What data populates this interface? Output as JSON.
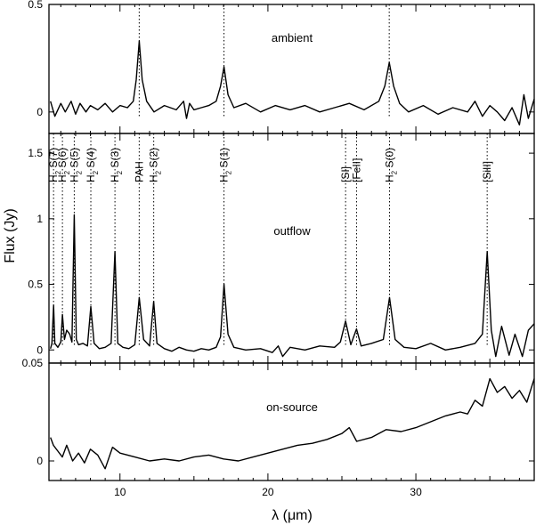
{
  "figure": {
    "ylabel": "Flux (Jy)",
    "xlabel": "λ (μm)"
  },
  "chart_data": [
    {
      "type": "line",
      "panel": "ambient",
      "title": "ambient",
      "xlim": [
        5.2,
        38
      ],
      "ylim": [
        -0.1,
        0.5
      ],
      "yticks": [
        0,
        0.5
      ],
      "ytick_labels": [
        "0",
        "0.5"
      ],
      "xticks": [
        10,
        20,
        30
      ],
      "xtick_labels": [
        "10",
        "20",
        "30"
      ],
      "line_markers": [
        11.3,
        17.03,
        28.2
      ],
      "x": [
        5.3,
        5.6,
        6.0,
        6.3,
        6.7,
        7.0,
        7.3,
        7.7,
        8.0,
        8.5,
        9.0,
        9.5,
        10.0,
        10.5,
        10.9,
        11.1,
        11.3,
        11.5,
        11.8,
        12.3,
        13.0,
        13.8,
        14.3,
        14.5,
        14.7,
        15.0,
        15.5,
        16.0,
        16.5,
        16.8,
        17.03,
        17.3,
        17.7,
        18.5,
        19.5,
        20.5,
        21.5,
        22.5,
        23.5,
        24.5,
        25.5,
        26.5,
        27.5,
        27.9,
        28.2,
        28.5,
        28.9,
        29.5,
        30.5,
        31.5,
        32.5,
        33.5,
        34.0,
        34.5,
        35.0,
        35.5,
        36.0,
        36.5,
        37.0,
        37.3,
        37.6,
        38.0
      ],
      "y": [
        0.05,
        -0.02,
        0.04,
        0.0,
        0.05,
        -0.01,
        0.04,
        0.0,
        0.03,
        0.01,
        0.04,
        0.0,
        0.03,
        0.02,
        0.05,
        0.15,
        0.33,
        0.15,
        0.05,
        0.0,
        0.03,
        0.01,
        0.05,
        -0.03,
        0.04,
        0.01,
        0.02,
        0.03,
        0.05,
        0.12,
        0.21,
        0.08,
        0.02,
        0.04,
        0.0,
        0.03,
        0.01,
        0.03,
        0.0,
        0.02,
        0.04,
        0.01,
        0.05,
        0.12,
        0.23,
        0.12,
        0.04,
        0.0,
        0.03,
        -0.01,
        0.02,
        0.0,
        0.05,
        -0.02,
        0.03,
        0.0,
        -0.04,
        0.02,
        -0.06,
        0.08,
        -0.03,
        0.06
      ]
    },
    {
      "type": "line",
      "panel": "outflow",
      "title": "outflow",
      "xlim": [
        5.2,
        38
      ],
      "ylim": [
        -0.1,
        1.65
      ],
      "yticks": [
        0,
        0.5,
        1,
        1.5
      ],
      "ytick_labels": [
        "0",
        "0.5",
        "1",
        "1.5"
      ],
      "xticks": [
        10,
        20,
        30
      ],
      "xtick_labels": [
        "10",
        "20",
        "30"
      ],
      "line_labels": [
        {
          "x": 5.51,
          "label": "S(7)",
          "h2": true
        },
        {
          "x": 6.11,
          "label": "S(6)",
          "h2": true
        },
        {
          "x": 6.91,
          "label": "S(5)",
          "h2": true
        },
        {
          "x": 8.03,
          "label": "S(4)",
          "h2": true
        },
        {
          "x": 9.66,
          "label": "S(3)",
          "h2": true
        },
        {
          "x": 11.3,
          "label": "PAH",
          "h2": false
        },
        {
          "x": 12.28,
          "label": "S(2)",
          "h2": true
        },
        {
          "x": 17.03,
          "label": "S(1)",
          "h2": true
        },
        {
          "x": 25.25,
          "label": "[SI]",
          "h2": false
        },
        {
          "x": 25.99,
          "label": "[FeII]",
          "h2": false
        },
        {
          "x": 28.22,
          "label": "S(0)",
          "h2": true
        },
        {
          "x": 34.82,
          "label": "[SiII]",
          "h2": false
        }
      ],
      "x": [
        5.3,
        5.4,
        5.51,
        5.6,
        5.8,
        6.0,
        6.11,
        6.25,
        6.4,
        6.6,
        6.75,
        6.91,
        7.05,
        7.2,
        7.5,
        7.8,
        8.03,
        8.25,
        8.6,
        9.0,
        9.4,
        9.66,
        9.85,
        10.2,
        10.6,
        11.0,
        11.3,
        11.6,
        12.0,
        12.28,
        12.5,
        13.0,
        13.5,
        14.0,
        14.5,
        15.0,
        15.5,
        16.0,
        16.5,
        16.8,
        17.03,
        17.3,
        17.7,
        18.5,
        19.5,
        20.3,
        20.7,
        21.0,
        21.5,
        22.5,
        23.5,
        24.5,
        24.9,
        25.25,
        25.6,
        25.99,
        26.3,
        27.0,
        27.8,
        28.22,
        28.6,
        29.2,
        30.0,
        31.0,
        32.0,
        33.0,
        34.0,
        34.5,
        34.82,
        35.1,
        35.4,
        35.8,
        36.3,
        36.7,
        37.2,
        37.6,
        38.0
      ],
      "y": [
        0.01,
        0.05,
        0.34,
        0.05,
        0.02,
        0.06,
        0.27,
        0.08,
        0.15,
        0.12,
        0.06,
        1.03,
        0.08,
        0.04,
        0.05,
        0.03,
        0.33,
        0.05,
        0.01,
        0.02,
        0.05,
        0.75,
        0.05,
        0.02,
        0.01,
        0.04,
        0.4,
        0.08,
        0.03,
        0.37,
        0.05,
        0.01,
        -0.01,
        0.02,
        0.0,
        -0.01,
        0.01,
        0.0,
        0.02,
        0.1,
        0.5,
        0.12,
        0.02,
        0.0,
        0.01,
        -0.02,
        0.03,
        -0.05,
        0.02,
        0.0,
        0.03,
        0.02,
        0.06,
        0.22,
        0.04,
        0.16,
        0.03,
        0.05,
        0.08,
        0.4,
        0.08,
        0.02,
        0.01,
        0.05,
        0.0,
        0.02,
        0.05,
        0.12,
        0.75,
        0.15,
        -0.05,
        0.18,
        -0.04,
        0.12,
        -0.05,
        0.15,
        0.2
      ]
    },
    {
      "type": "line",
      "panel": "on-source",
      "title": "on-source",
      "xlim": [
        5.2,
        38
      ],
      "ylim": [
        -0.01,
        0.05
      ],
      "yticks": [
        0,
        0.05
      ],
      "ytick_labels": [
        "0",
        "0.05"
      ],
      "xticks": [
        10,
        20,
        30
      ],
      "xtick_labels": [
        "10",
        "20",
        "30"
      ],
      "x": [
        5.3,
        5.5,
        5.8,
        6.1,
        6.4,
        6.8,
        7.2,
        7.6,
        8.0,
        8.5,
        9.0,
        9.5,
        10.0,
        11.0,
        12.0,
        13.0,
        14.0,
        15.0,
        16.0,
        17.0,
        18.0,
        19.0,
        20.0,
        21.0,
        22.0,
        23.0,
        24.0,
        25.0,
        25.5,
        26.0,
        27.0,
        28.0,
        29.0,
        30.0,
        31.0,
        32.0,
        33.0,
        33.5,
        34.0,
        34.5,
        35.0,
        35.5,
        36.0,
        36.5,
        37.0,
        37.5,
        38.0
      ],
      "y": [
        0.012,
        0.008,
        0.005,
        0.002,
        0.008,
        0.0,
        0.004,
        -0.001,
        0.006,
        0.003,
        -0.004,
        0.007,
        0.004,
        0.002,
        0.0,
        0.001,
        0.0,
        0.002,
        0.003,
        0.001,
        0.0,
        0.002,
        0.004,
        0.006,
        0.008,
        0.009,
        0.011,
        0.014,
        0.017,
        0.01,
        0.012,
        0.016,
        0.015,
        0.017,
        0.02,
        0.023,
        0.025,
        0.024,
        0.031,
        0.028,
        0.042,
        0.035,
        0.038,
        0.032,
        0.036,
        0.03,
        0.042
      ]
    }
  ]
}
